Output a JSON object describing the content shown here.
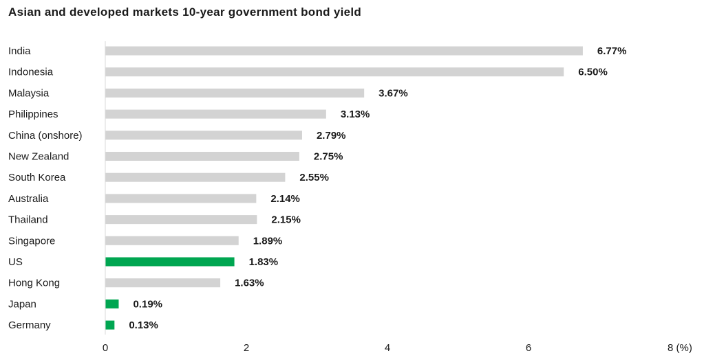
{
  "chart_data": {
    "type": "bar",
    "orientation": "horizontal",
    "title": "Asian and developed markets 10-year government bond yield",
    "categories": [
      "India",
      "Indonesia",
      "Malaysia",
      "Philippines",
      "China (onshore)",
      "New Zealand",
      "South Korea",
      "Australia",
      "Thailand",
      "Singapore",
      "US",
      "Hong Kong",
      "Japan",
      "Germany"
    ],
    "values": [
      6.77,
      6.5,
      3.67,
      3.13,
      2.79,
      2.75,
      2.55,
      2.14,
      2.15,
      1.89,
      1.83,
      1.63,
      0.19,
      0.13
    ],
    "value_labels": [
      "6.77%",
      "6.50%",
      "3.67%",
      "3.13%",
      "2.79%",
      "2.75%",
      "2.55%",
      "2.14%",
      "2.15%",
      "1.89%",
      "1.83%",
      "1.63%",
      "0.19%",
      "0.13%"
    ],
    "highlighted": [
      "US",
      "Japan",
      "Germany"
    ],
    "xlim": [
      0,
      8
    ],
    "x_ticks": [
      0,
      2,
      4,
      6,
      8
    ],
    "x_tick_labels": [
      "0",
      "2",
      "4",
      "6",
      "8 (%)"
    ],
    "grid": false,
    "colors": {
      "default": "#d3d3d3",
      "highlight": "#00a651",
      "axis": "#d9d9d9"
    }
  }
}
